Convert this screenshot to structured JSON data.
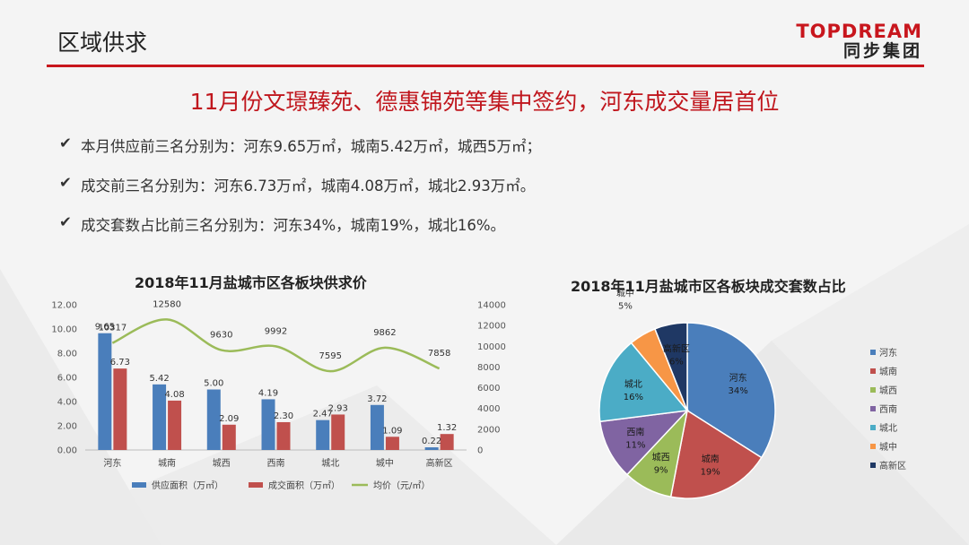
{
  "header": {
    "title": "区域供求",
    "logo_en": "TOPDREAM",
    "logo_cn": "同步集团"
  },
  "headline": "11月份文璟臻苑、德惠锦苑等集中签约，河东成交量居首位",
  "bullets": [
    "本月供应前三名分别为：河东9.65万㎡，城南5.42万㎡，城西5万㎡；",
    "成交前三名分别为：河东6.73万㎡，城南4.08万㎡，城北2.93万㎡。",
    "成交套数占比前三名分别为：河东34%，城南19%，城北16%。"
  ],
  "colors": {
    "accent": "#c8161d",
    "supply": "#4a7ebb",
    "deal": "#c0504d",
    "price": "#9bbb59"
  },
  "chart_data": [
    {
      "type": "bar",
      "title": "2018年11月盐城市区各板块供求价",
      "categories": [
        "河东",
        "城南",
        "城西",
        "西南",
        "城北",
        "城中",
        "高新区"
      ],
      "series": [
        {
          "name": "供应面积（万㎡）",
          "type": "bar",
          "axis": "left",
          "values": [
            9.65,
            5.42,
            5.0,
            4.19,
            2.47,
            3.72,
            0.22
          ],
          "labels": [
            "9.65",
            "5.42",
            "5.00",
            "4.19",
            "2.47",
            "3.72",
            "0.22"
          ]
        },
        {
          "name": "成交面积（万㎡）",
          "type": "bar",
          "axis": "left",
          "values": [
            6.73,
            4.08,
            2.09,
            2.3,
            2.93,
            1.09,
            1.32
          ],
          "labels": [
            "6.73",
            "4.08",
            "2.09",
            "2.30",
            "2.93",
            "1.09",
            "1.32"
          ]
        },
        {
          "name": "均价（元/㎡）",
          "type": "line",
          "axis": "right",
          "values": [
            10317,
            12580,
            9630,
            9992,
            7595,
            9862,
            7858
          ],
          "labels": [
            "10317",
            "12580",
            "9630",
            "9992",
            "7595",
            "9862",
            "7858"
          ]
        }
      ],
      "ylim": [
        0,
        12
      ],
      "yticks": [
        "0.00",
        "2.00",
        "4.00",
        "6.00",
        "8.00",
        "10.00",
        "12.00"
      ],
      "y2lim": [
        0,
        14000
      ],
      "y2ticks": [
        "0",
        "2000",
        "4000",
        "6000",
        "8000",
        "10000",
        "12000",
        "14000"
      ],
      "legend": "bottom",
      "grid": false
    },
    {
      "type": "pie",
      "title": "2018年11月盐城市区各板块成交套数占比",
      "categories": [
        "河东",
        "城南",
        "城西",
        "西南",
        "城北",
        "城中",
        "高新区"
      ],
      "values": [
        34,
        19,
        9,
        11,
        16,
        5,
        6
      ],
      "labels": [
        "34%",
        "19%",
        "9%",
        "11%",
        "16%",
        "5%",
        "6%"
      ],
      "colors": [
        "#4a7ebb",
        "#c0504d",
        "#9bbb59",
        "#8064a2",
        "#4bacc6",
        "#f79646",
        "#1f3864"
      ],
      "legend": "right"
    }
  ]
}
